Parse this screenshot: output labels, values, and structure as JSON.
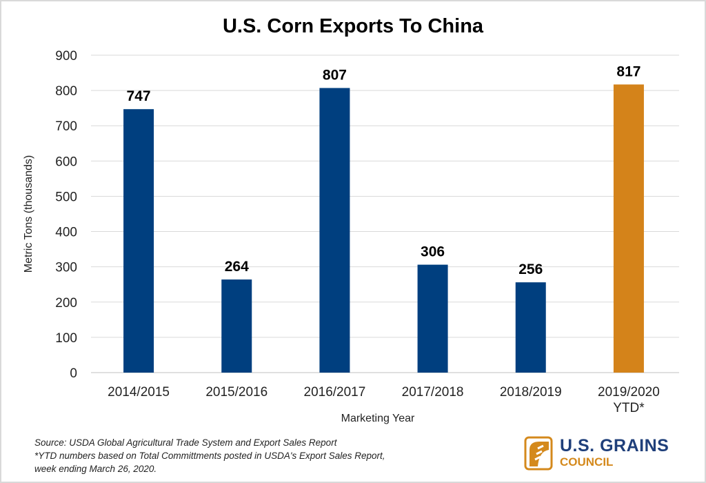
{
  "chart_data": {
    "type": "bar",
    "title": "U.S. Corn Exports To China",
    "xlabel": "Marketing Year",
    "ylabel": "Metric Tons  (thousands)",
    "categories": [
      [
        "2014/2015"
      ],
      [
        "2015/2016"
      ],
      [
        "2016/2017"
      ],
      [
        "2017/2018"
      ],
      [
        "2018/2019"
      ],
      [
        "2019/2020",
        "YTD*"
      ]
    ],
    "values": [
      747,
      264,
      807,
      306,
      256,
      817
    ],
    "colors": [
      "#003f7f",
      "#003f7f",
      "#003f7f",
      "#003f7f",
      "#003f7f",
      "#d4831a"
    ],
    "ylim": [
      0,
      900
    ],
    "yticks": [
      0,
      100,
      200,
      300,
      400,
      500,
      600,
      700,
      800,
      900
    ],
    "grid": true,
    "data_labels": true
  },
  "footer": {
    "source": "Source: USDA Global Agricultural Trade System and Export Sales Report",
    "note1": "*YTD numbers based on Total Committments posted in USDA's Export Sales Report,",
    "note2": "week ending March 26, 2020."
  },
  "logo": {
    "line1": "U.S. GRAINS",
    "line2": "COUNCIL"
  }
}
